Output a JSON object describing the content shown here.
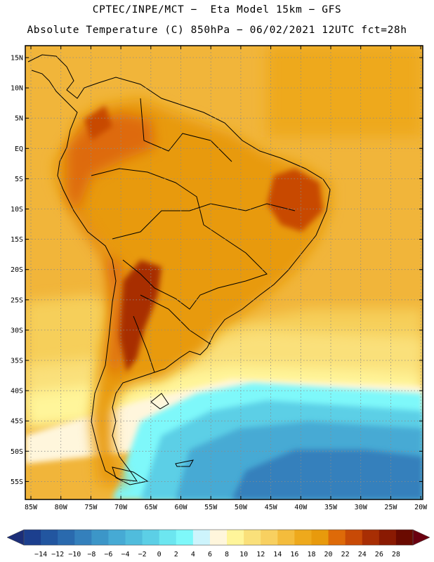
{
  "header": {
    "line1": "CPTEC/INPE/MCT −  Eta Model 15km − GFS",
    "line2": "Absolute Temperature (C) 850hPa − 06/02/2021 12UTC fct=28h"
  },
  "lat_labels": [
    "15N",
    "10N",
    "5N",
    "EQ",
    "5S",
    "10S",
    "15S",
    "20S",
    "25S",
    "30S",
    "35S",
    "40S",
    "45S",
    "50S",
    "55S"
  ],
  "lon_labels": [
    "85W",
    "80W",
    "75W",
    "70W",
    "65W",
    "60W",
    "55W",
    "50W",
    "45W",
    "40W",
    "35W",
    "30W",
    "25W",
    "20W"
  ],
  "colorbar": {
    "ticks": [
      "−14",
      "−12",
      "−10",
      "−8",
      "−6",
      "−4",
      "−2",
      "0",
      "2",
      "4",
      "6",
      "8",
      "10",
      "12",
      "14",
      "16",
      "18",
      "20",
      "22",
      "24",
      "26",
      "28"
    ],
    "colors": [
      "#1c3f8e",
      "#2256a0",
      "#2a6aae",
      "#3480bc",
      "#3c96c8",
      "#46aad4",
      "#50bcdc",
      "#5ccfe6",
      "#6ce6f0",
      "#7ef8fa",
      "#cdf4fc",
      "#fff6dc",
      "#fff59a",
      "#fae07a",
      "#f8d060",
      "#f4bc3c",
      "#eea91c",
      "#e89a0c",
      "#de6a08",
      "#c84a06",
      "#a82e04",
      "#8a1a02",
      "#6a0a00"
    ],
    "low_arrow_color": "#1c2e78",
    "high_arrow_color": "#6a0010"
  }
}
